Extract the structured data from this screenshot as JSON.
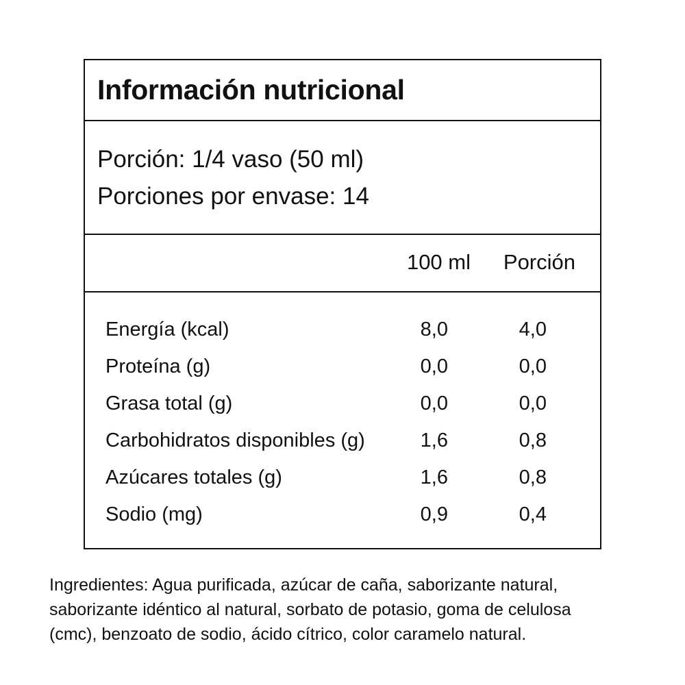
{
  "label": {
    "title": "Información nutricional",
    "serving_size": "Porción: 1/4 vaso (50 ml)",
    "servings_per_container": "Porciones por envase: 14",
    "columns": [
      "100 ml",
      "Porción"
    ],
    "rows": [
      {
        "name": "Energía (kcal)",
        "per_100ml": "8,0",
        "per_serving": "4,0"
      },
      {
        "name": "Proteína (g)",
        "per_100ml": "0,0",
        "per_serving": "0,0"
      },
      {
        "name": "Grasa total (g)",
        "per_100ml": "0,0",
        "per_serving": "0,0"
      },
      {
        "name": "Carbohidratos disponibles (g)",
        "per_100ml": "1,6",
        "per_serving": "0,8"
      },
      {
        "name": "Azúcares totales (g)",
        "per_100ml": "1,6",
        "per_serving": "0,8"
      },
      {
        "name": "Sodio (mg)",
        "per_100ml": "0,9",
        "per_serving": "0,4"
      }
    ]
  },
  "ingredients": {
    "lines": [
      "Ingredientes: Agua purificada, azúcar de caña, saborizante natural,",
      "saborizante idéntico al natural, sorbato de potasio, goma de celulosa",
      "(cmc), benzoato de sodio, ácido cítrico, color caramelo natural."
    ]
  }
}
